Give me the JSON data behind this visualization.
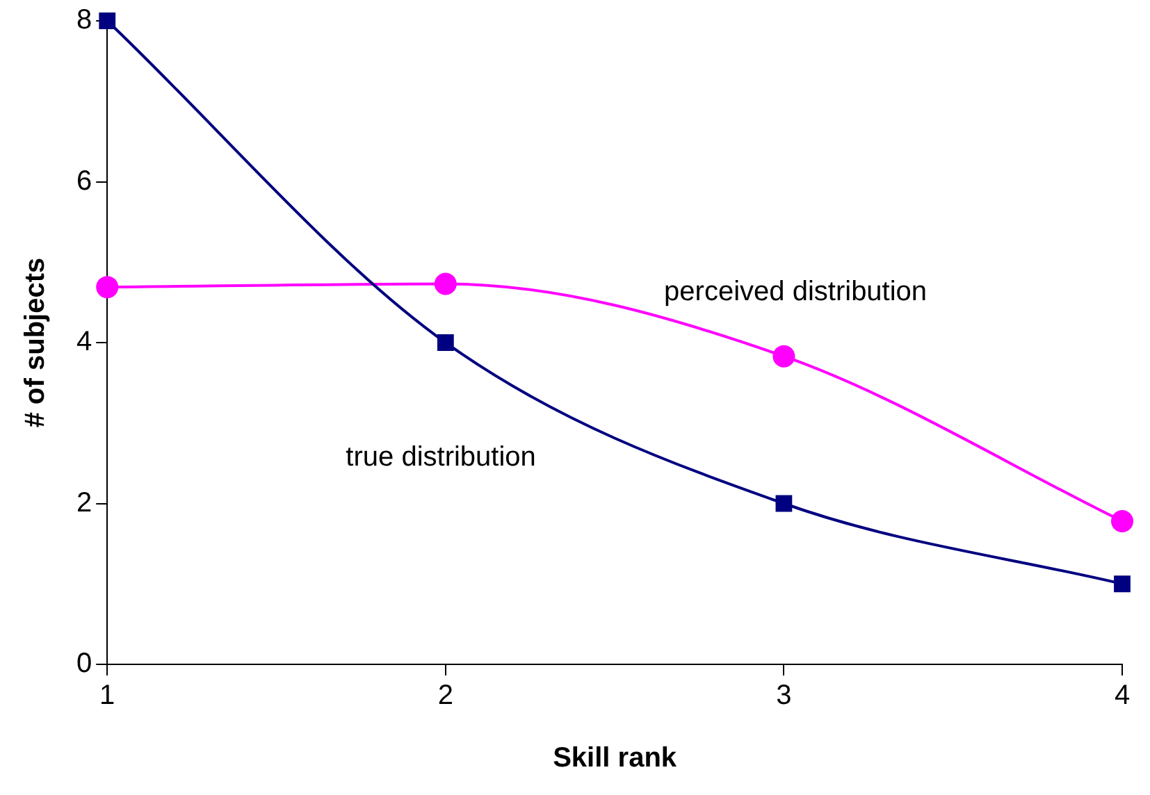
{
  "chart_data": {
    "type": "line",
    "xlabel": "Skill rank",
    "ylabel": "# of subjects",
    "x": [
      1,
      2,
      3,
      4
    ],
    "series": [
      {
        "name": "true distribution",
        "color": "#000080",
        "values": [
          8,
          4,
          2,
          1
        ],
        "marker": "square"
      },
      {
        "name": "perceived distribution",
        "color": "#ff00ff",
        "values": [
          4.69,
          4.73,
          3.83,
          1.78
        ],
        "marker": "circle"
      }
    ],
    "xlim": [
      1,
      4
    ],
    "xticks": [
      1,
      2,
      3,
      4
    ],
    "ylim": [
      0,
      8
    ],
    "yticks": [
      0,
      2,
      4,
      6,
      8
    ],
    "grid": false,
    "legend": false
  }
}
